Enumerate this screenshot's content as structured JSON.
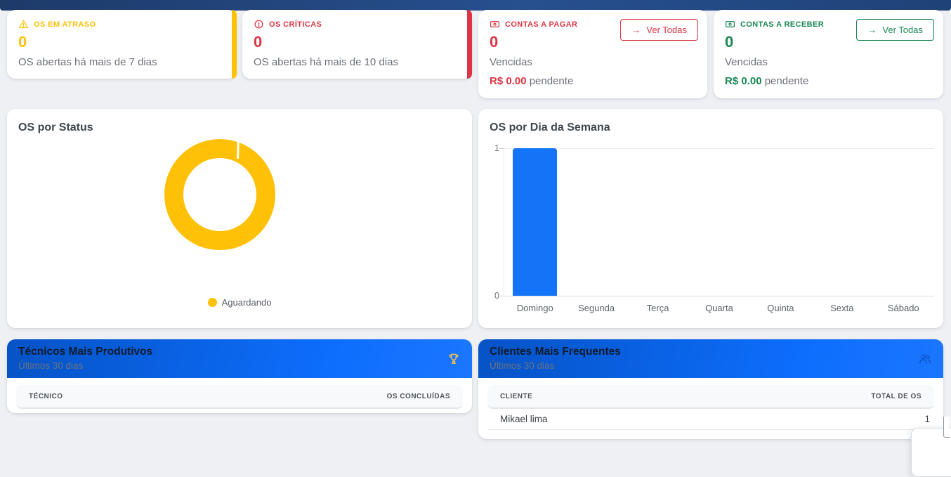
{
  "colors": {
    "amber": "#ffc107",
    "red": "#dc3545",
    "green": "#198754",
    "bar_blue": "#1374f8",
    "donut_yellow": "#ffc107"
  },
  "ver_todas_arrow": "→",
  "summary_cards": [
    {
      "label": "OS EM ATRASO",
      "value": "0",
      "subtitle": "OS abertas há mais de 7 dias",
      "color": "#ffc107",
      "icon": "warning-triangle"
    },
    {
      "label": "OS CRÍTICAS",
      "value": "0",
      "subtitle": "OS abertas há mais de 10 dias",
      "color": "#dc3545",
      "icon": "exclamation-circle"
    },
    {
      "label": "CONTAS A PAGAR",
      "value": "0",
      "subtitle": "Vencidas",
      "amount": "R$ 0.00",
      "amount_suffix": "pendente",
      "button_label": "Ver Todas",
      "color": "#dc3545",
      "icon": "banknote"
    },
    {
      "label": "CONTAS A RECEBER",
      "value": "0",
      "subtitle": "Vencidas",
      "amount": "R$ 0.00",
      "amount_suffix": "pendente",
      "button_label": "Ver Todas",
      "color": "#198754",
      "icon": "banknote"
    }
  ],
  "chart_data": [
    {
      "type": "pie",
      "title": "OS por Status",
      "labels": [
        "Aguardando"
      ],
      "values": [
        1
      ],
      "colors": [
        "#ffc107"
      ],
      "donut": true,
      "legend_position": "bottom"
    },
    {
      "type": "bar",
      "title": "OS por Dia da Semana",
      "categories": [
        "Domingo",
        "Segunda",
        "Terça",
        "Quarta",
        "Quinta",
        "Sexta",
        "Sábado"
      ],
      "values": [
        1,
        0,
        0,
        0,
        0,
        0,
        0
      ],
      "bar_color": "#1374f8",
      "ylim": [
        0,
        1
      ],
      "yticks": [
        "1",
        "0"
      ],
      "grid": "horizontal"
    }
  ],
  "technicians_card": {
    "title": "Técnicos Mais Produtivos",
    "subtitle": "Últimos 30 dias",
    "icon": "trophy",
    "columns": [
      "TÉCNICO",
      "OS CONCLUÍDAS"
    ],
    "rows": []
  },
  "clients_card": {
    "title": "Clientes Mais Frequentes",
    "subtitle": "Últimos 30 dias",
    "icon": "users",
    "columns": [
      "CLIENTE",
      "TOTAL DE OS"
    ],
    "rows": [
      {
        "name": "Mikael lima",
        "total": "1"
      }
    ]
  }
}
